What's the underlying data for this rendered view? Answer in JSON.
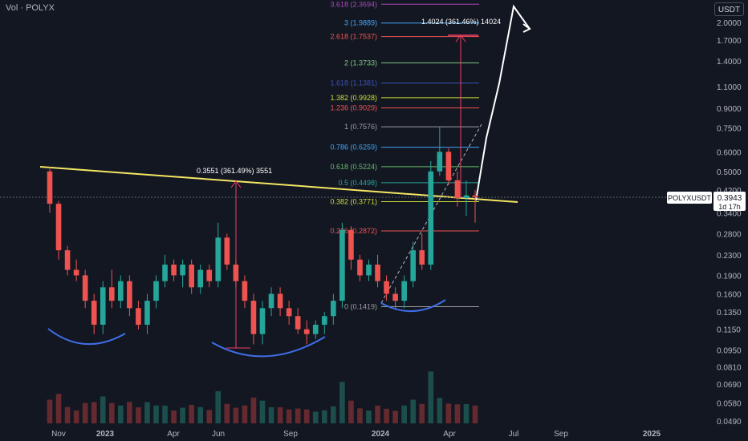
{
  "header": {
    "title": "Vol · POLYX"
  },
  "currency_button": "USDT",
  "price_tag": {
    "symbol": "POLYXUSDT",
    "price": "0.3943",
    "countdown": "1d 17h"
  },
  "chart_data": {
    "type": "candlestick",
    "symbol": "POLYXUSDT",
    "y_scale": "log",
    "y_ticks": [
      "2.0000",
      "1.7000",
      "1.4000",
      "1.1000",
      "0.9000",
      "0.7500",
      "0.6000",
      "0.5000",
      "0.4200",
      "0.3400",
      "0.2800",
      "0.2300",
      "0.1900",
      "0.1600",
      "0.1350",
      "0.1150",
      "0.0950",
      "0.0810",
      "0.0690",
      "0.0580",
      "0.0490"
    ],
    "x_ticks": [
      "Nov",
      "2023",
      "Apr",
      "Jun",
      "Sep",
      "2024",
      "Apr",
      "Jul",
      "Sep",
      "2025"
    ],
    "current_price": 0.3943,
    "fib_levels": [
      {
        "label": "3.618 (2.3694)",
        "value": 2.3694,
        "color": "#ab47bc"
      },
      {
        "label": "3 (1.9889)",
        "value": 1.9889,
        "color": "#42a5f5"
      },
      {
        "label": "2.618 (1.7537)",
        "value": 1.7537,
        "color": "#ef5350"
      },
      {
        "label": "2 (1.3733)",
        "value": 1.3733,
        "color": "#81c784"
      },
      {
        "label": "1.618 (1.1381)",
        "value": 1.1381,
        "color": "#3f51b5"
      },
      {
        "label": "1.382 (0.9928)",
        "value": 0.9928,
        "color": "#cddc39"
      },
      {
        "label": "1.236 (0.9029)",
        "value": 0.9029,
        "color": "#ef5350"
      },
      {
        "label": "1 (0.7576)",
        "value": 0.7576,
        "color": "#9e9e9e"
      },
      {
        "label": "0.786 (0.6259)",
        "value": 0.6259,
        "color": "#42a5f5"
      },
      {
        "label": "0.618 (0.5224)",
        "value": 0.5224,
        "color": "#66bb6a"
      },
      {
        "label": "0.5 (0.4498)",
        "value": 0.4498,
        "color": "#26a69a"
      },
      {
        "label": "0.382 (0.3771)",
        "value": 0.3771,
        "color": "#cddc39"
      },
      {
        "label": "0.236 (0.2872)",
        "value": 0.2872,
        "color": "#ef5350"
      },
      {
        "label": "0 (0.1419)",
        "value": 0.1419,
        "color": "#9e9e9e"
      }
    ],
    "measure_annotations": [
      {
        "label": "0.3551 (361.49%) 3551",
        "from": 0.1,
        "to": 0.45
      },
      {
        "label": "1.4024 (361.46%) 14024",
        "from": 0.39,
        "to": 1.78
      }
    ],
    "candles": [
      {
        "o": 0.5,
        "h": 0.52,
        "l": 0.34,
        "c": 0.37
      },
      {
        "o": 0.37,
        "h": 0.38,
        "l": 0.22,
        "c": 0.24
      },
      {
        "o": 0.24,
        "h": 0.25,
        "l": 0.19,
        "c": 0.2
      },
      {
        "o": 0.2,
        "h": 0.22,
        "l": 0.18,
        "c": 0.19
      },
      {
        "o": 0.19,
        "h": 0.2,
        "l": 0.14,
        "c": 0.15
      },
      {
        "o": 0.15,
        "h": 0.16,
        "l": 0.11,
        "c": 0.12
      },
      {
        "o": 0.12,
        "h": 0.18,
        "l": 0.11,
        "c": 0.17
      },
      {
        "o": 0.17,
        "h": 0.2,
        "l": 0.14,
        "c": 0.15
      },
      {
        "o": 0.15,
        "h": 0.19,
        "l": 0.14,
        "c": 0.18
      },
      {
        "o": 0.18,
        "h": 0.19,
        "l": 0.13,
        "c": 0.14
      },
      {
        "o": 0.14,
        "h": 0.15,
        "l": 0.115,
        "c": 0.12
      },
      {
        "o": 0.12,
        "h": 0.16,
        "l": 0.11,
        "c": 0.15
      },
      {
        "o": 0.15,
        "h": 0.19,
        "l": 0.14,
        "c": 0.18
      },
      {
        "o": 0.18,
        "h": 0.23,
        "l": 0.17,
        "c": 0.21
      },
      {
        "o": 0.21,
        "h": 0.22,
        "l": 0.18,
        "c": 0.19
      },
      {
        "o": 0.19,
        "h": 0.22,
        "l": 0.17,
        "c": 0.21
      },
      {
        "o": 0.21,
        "h": 0.22,
        "l": 0.16,
        "c": 0.17
      },
      {
        "o": 0.17,
        "h": 0.21,
        "l": 0.16,
        "c": 0.2
      },
      {
        "o": 0.2,
        "h": 0.21,
        "l": 0.17,
        "c": 0.18
      },
      {
        "o": 0.18,
        "h": 0.31,
        "l": 0.17,
        "c": 0.27
      },
      {
        "o": 0.27,
        "h": 0.28,
        "l": 0.2,
        "c": 0.21
      },
      {
        "o": 0.21,
        "h": 0.22,
        "l": 0.17,
        "c": 0.18
      },
      {
        "o": 0.18,
        "h": 0.19,
        "l": 0.14,
        "c": 0.15
      },
      {
        "o": 0.15,
        "h": 0.16,
        "l": 0.1,
        "c": 0.11
      },
      {
        "o": 0.11,
        "h": 0.15,
        "l": 0.1,
        "c": 0.14
      },
      {
        "o": 0.14,
        "h": 0.17,
        "l": 0.13,
        "c": 0.16
      },
      {
        "o": 0.16,
        "h": 0.17,
        "l": 0.13,
        "c": 0.14
      },
      {
        "o": 0.14,
        "h": 0.15,
        "l": 0.12,
        "c": 0.13
      },
      {
        "o": 0.13,
        "h": 0.14,
        "l": 0.11,
        "c": 0.115
      },
      {
        "o": 0.115,
        "h": 0.125,
        "l": 0.1,
        "c": 0.11
      },
      {
        "o": 0.11,
        "h": 0.125,
        "l": 0.105,
        "c": 0.12
      },
      {
        "o": 0.12,
        "h": 0.135,
        "l": 0.11,
        "c": 0.13
      },
      {
        "o": 0.13,
        "h": 0.16,
        "l": 0.12,
        "c": 0.15
      },
      {
        "o": 0.15,
        "h": 0.31,
        "l": 0.14,
        "c": 0.29
      },
      {
        "o": 0.29,
        "h": 0.3,
        "l": 0.2,
        "c": 0.22
      },
      {
        "o": 0.22,
        "h": 0.23,
        "l": 0.18,
        "c": 0.19
      },
      {
        "o": 0.19,
        "h": 0.22,
        "l": 0.18,
        "c": 0.21
      },
      {
        "o": 0.21,
        "h": 0.23,
        "l": 0.17,
        "c": 0.18
      },
      {
        "o": 0.18,
        "h": 0.19,
        "l": 0.15,
        "c": 0.16
      },
      {
        "o": 0.16,
        "h": 0.17,
        "l": 0.14,
        "c": 0.15
      },
      {
        "o": 0.15,
        "h": 0.19,
        "l": 0.14,
        "c": 0.18
      },
      {
        "o": 0.18,
        "h": 0.26,
        "l": 0.17,
        "c": 0.24
      },
      {
        "o": 0.24,
        "h": 0.28,
        "l": 0.2,
        "c": 0.21
      },
      {
        "o": 0.21,
        "h": 0.55,
        "l": 0.2,
        "c": 0.5
      },
      {
        "o": 0.5,
        "h": 0.76,
        "l": 0.48,
        "c": 0.6
      },
      {
        "o": 0.6,
        "h": 0.62,
        "l": 0.44,
        "c": 0.46
      },
      {
        "o": 0.46,
        "h": 0.5,
        "l": 0.36,
        "c": 0.39
      },
      {
        "o": 0.39,
        "h": 0.46,
        "l": 0.33,
        "c": 0.4
      },
      {
        "o": 0.4,
        "h": 0.42,
        "l": 0.31,
        "c": 0.3943
      }
    ]
  }
}
